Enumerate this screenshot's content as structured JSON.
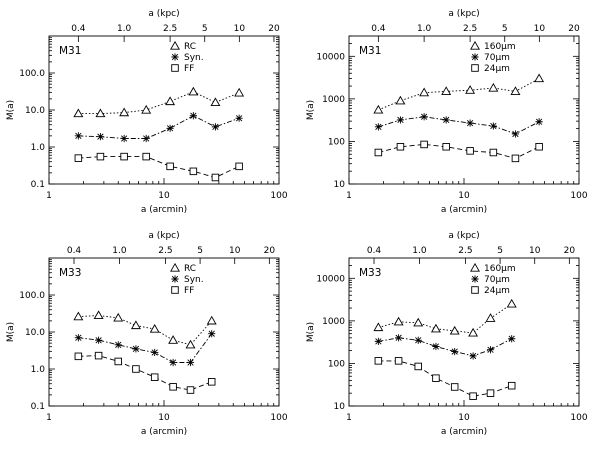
{
  "chart_data": [
    {
      "type": "line",
      "title": "M31",
      "xlabel": "a (arcmin)",
      "ylabel": "M(a)",
      "top_xlabel": "a (kpc)",
      "xscale": "log",
      "yscale": "log",
      "xlim": [
        1,
        100
      ],
      "ylim": [
        0.1,
        1000
      ],
      "x_ticks": [
        "1",
        "10",
        "100"
      ],
      "y_ticks": [
        "0.1",
        "1.0",
        "10.0",
        "100.0"
      ],
      "top_ticks": [
        "0.4",
        "1.0",
        "2.5",
        "5",
        "10",
        "20"
      ],
      "top_ticks_arcmin": [
        1.8,
        4.5,
        11.3,
        22.6,
        45.2,
        90.4
      ],
      "legend_position": "top-right",
      "x": [
        1.8,
        2.8,
        4.5,
        7.0,
        11.3,
        18.0,
        28.0,
        45.0
      ],
      "series": [
        {
          "name": "RC",
          "marker": "triangle",
          "dash": "dotted",
          "values": [
            8,
            8,
            8.5,
            10,
            17,
            31,
            16,
            29
          ]
        },
        {
          "name": "Syn.",
          "marker": "asterisk",
          "dash": "dashdot",
          "values": [
            2.0,
            1.9,
            1.7,
            1.7,
            3.2,
            7,
            3.5,
            6
          ]
        },
        {
          "name": "FF",
          "marker": "square",
          "dash": "dashed",
          "values": [
            0.5,
            0.55,
            0.55,
            0.55,
            0.3,
            0.22,
            0.15,
            0.3
          ]
        }
      ]
    },
    {
      "type": "line",
      "title": "M31",
      "xlabel": "a (arcmin)",
      "ylabel": "M(a)",
      "top_xlabel": "a (kpc)",
      "xscale": "log",
      "yscale": "log",
      "xlim": [
        1,
        100
      ],
      "ylim": [
        10,
        30000
      ],
      "x_ticks": [
        "1",
        "10",
        "100"
      ],
      "y_ticks": [
        "10",
        "100",
        "1000",
        "10000"
      ],
      "top_ticks": [
        "0.4",
        "1.0",
        "2.5",
        "5",
        "10",
        "20"
      ],
      "top_ticks_arcmin": [
        1.8,
        4.5,
        11.3,
        22.6,
        45.2,
        90.4
      ],
      "legend_position": "top-right",
      "x": [
        1.8,
        2.8,
        4.5,
        7.0,
        11.3,
        18.0,
        28.0,
        45.0
      ],
      "series": [
        {
          "name": "160μm",
          "marker": "triangle",
          "dash": "dotted",
          "values": [
            550,
            900,
            1400,
            1500,
            1600,
            1800,
            1500,
            3000
          ]
        },
        {
          "name": "70μm",
          "marker": "asterisk",
          "dash": "dashdot",
          "values": [
            220,
            320,
            380,
            320,
            270,
            230,
            150,
            290
          ]
        },
        {
          "name": "24μm",
          "marker": "square",
          "dash": "dashed",
          "values": [
            55,
            75,
            85,
            75,
            60,
            55,
            40,
            75
          ]
        }
      ]
    },
    {
      "type": "line",
      "title": "M33",
      "xlabel": "a (arcmin)",
      "ylabel": "M(a)",
      "top_xlabel": "a (kpc)",
      "xscale": "log",
      "yscale": "log",
      "xlim": [
        1,
        100
      ],
      "ylim": [
        0.1,
        1000
      ],
      "x_ticks": [
        "1",
        "10",
        "100"
      ],
      "y_ticks": [
        "0.1",
        "1.0",
        "10.0",
        "100.0"
      ],
      "top_ticks": [
        "0.4",
        "1.0",
        "2.5",
        "5",
        "10",
        "20"
      ],
      "top_ticks_arcmin": [
        1.65,
        4.1,
        10.3,
        20.6,
        41.2,
        82.4
      ],
      "legend_position": "top-right",
      "x": [
        1.8,
        2.7,
        4.0,
        5.7,
        8.3,
        12.0,
        17.0,
        26.0
      ],
      "series": [
        {
          "name": "RC",
          "marker": "triangle",
          "dash": "dotted",
          "values": [
            26,
            28,
            24,
            15,
            12,
            6,
            4.5,
            20
          ]
        },
        {
          "name": "Syn.",
          "marker": "asterisk",
          "dash": "dashdot",
          "values": [
            7,
            6,
            4.5,
            3.5,
            2.8,
            1.5,
            1.5,
            9
          ]
        },
        {
          "name": "FF",
          "marker": "square",
          "dash": "dashed",
          "values": [
            2.2,
            2.3,
            1.6,
            1.0,
            0.6,
            0.33,
            0.27,
            0.45
          ]
        }
      ]
    },
    {
      "type": "line",
      "title": "M33",
      "xlabel": "a (arcmin)",
      "ylabel": "M(a)",
      "top_xlabel": "a (kpc)",
      "xscale": "log",
      "yscale": "log",
      "xlim": [
        1,
        100
      ],
      "ylim": [
        10,
        30000
      ],
      "x_ticks": [
        "1",
        "10",
        "100"
      ],
      "y_ticks": [
        "10",
        "100",
        "1000",
        "10000"
      ],
      "top_ticks": [
        "0.4",
        "1.0",
        "2.5",
        "5",
        "10",
        "20"
      ],
      "top_ticks_arcmin": [
        1.65,
        4.1,
        10.3,
        20.6,
        41.2,
        82.4
      ],
      "legend_position": "top-right",
      "x": [
        1.8,
        2.7,
        4.0,
        5.7,
        8.3,
        12.0,
        17.0,
        26.0
      ],
      "series": [
        {
          "name": "160μm",
          "marker": "triangle",
          "dash": "dotted",
          "values": [
            700,
            950,
            900,
            650,
            580,
            520,
            1150,
            2500
          ]
        },
        {
          "name": "70μm",
          "marker": "asterisk",
          "dash": "dashdot",
          "values": [
            330,
            400,
            350,
            250,
            190,
            150,
            210,
            380
          ]
        },
        {
          "name": "24μm",
          "marker": "square",
          "dash": "dashed",
          "values": [
            115,
            115,
            85,
            45,
            28,
            17,
            20,
            30
          ]
        }
      ]
    }
  ]
}
